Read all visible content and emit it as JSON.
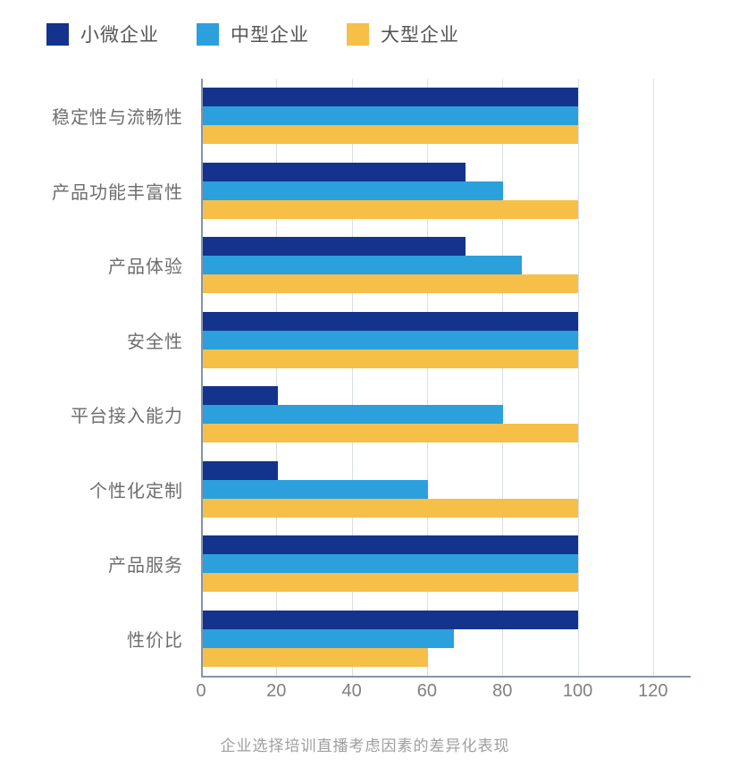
{
  "legend": {
    "items": [
      "小微企业",
      "中型企业",
      "大型企业"
    ]
  },
  "caption": "企业选择培训直播考虑因素的差异化表现",
  "colors": {
    "series_small": "#14338d",
    "series_medium": "#2ba0dc",
    "series_large": "#f6bf47",
    "axis": "#8494ab",
    "gridline": "#d9dee9",
    "category_label": "#6e6e6e",
    "tick_label": "#808080",
    "caption": "#9e9e9e",
    "background": "#ffffff"
  },
  "chart_data": {
    "type": "bar",
    "orientation": "horizontal",
    "title": "企业选择培训直播考虑因素的差异化表现",
    "xlabel": "",
    "ylabel": "",
    "categories": [
      "稳定性与流畅性",
      "产品功能丰富性",
      "产品体验",
      "安全性",
      "平台接入能力",
      "个性化定制",
      "产品服务",
      "性价比"
    ],
    "series": [
      {
        "name": "小微企业",
        "color": "#14338d",
        "values": [
          100,
          70,
          70,
          100,
          20,
          20,
          100,
          100
        ]
      },
      {
        "name": "中型企业",
        "color": "#2ba0dc",
        "values": [
          100,
          80,
          85,
          100,
          80,
          60,
          100,
          67
        ]
      },
      {
        "name": "大型企业",
        "color": "#f6bf47",
        "values": [
          100,
          100,
          100,
          100,
          100,
          100,
          100,
          60
        ]
      }
    ],
    "x_ticks": [
      0,
      20,
      40,
      60,
      80,
      100,
      120
    ],
    "xlim": [
      0,
      130
    ],
    "grid": true,
    "legend_position": "top-left"
  }
}
